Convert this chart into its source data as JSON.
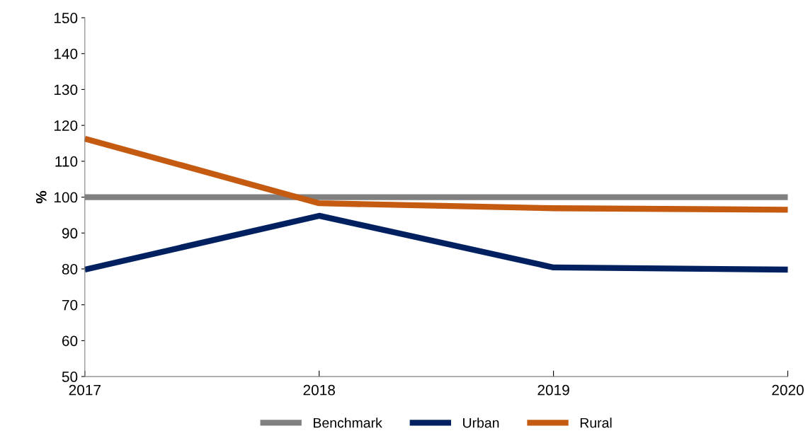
{
  "chart_data": {
    "type": "line",
    "ylabel": "%",
    "x": [
      2017,
      2018,
      2019,
      2020
    ],
    "xlim": [
      2017,
      2020
    ],
    "xticks": [
      2017,
      2018,
      2019,
      2020
    ],
    "ylim": [
      50,
      150
    ],
    "yticks": [
      50,
      60,
      70,
      80,
      90,
      100,
      110,
      120,
      130,
      140,
      150
    ],
    "grid": false,
    "legend": "bottom",
    "marker": "none",
    "line_style": "solid",
    "series": [
      {
        "name": "Benchmark",
        "color": "#808080",
        "values": [
          100,
          100,
          100,
          100
        ]
      },
      {
        "name": "Urban",
        "color": "#002060",
        "values": [
          79.8,
          94.8,
          80.4,
          79.8
        ]
      },
      {
        "name": "Rural",
        "color": "#c55a11",
        "values": [
          116.3,
          98.3,
          96.9,
          96.5
        ]
      }
    ]
  }
}
